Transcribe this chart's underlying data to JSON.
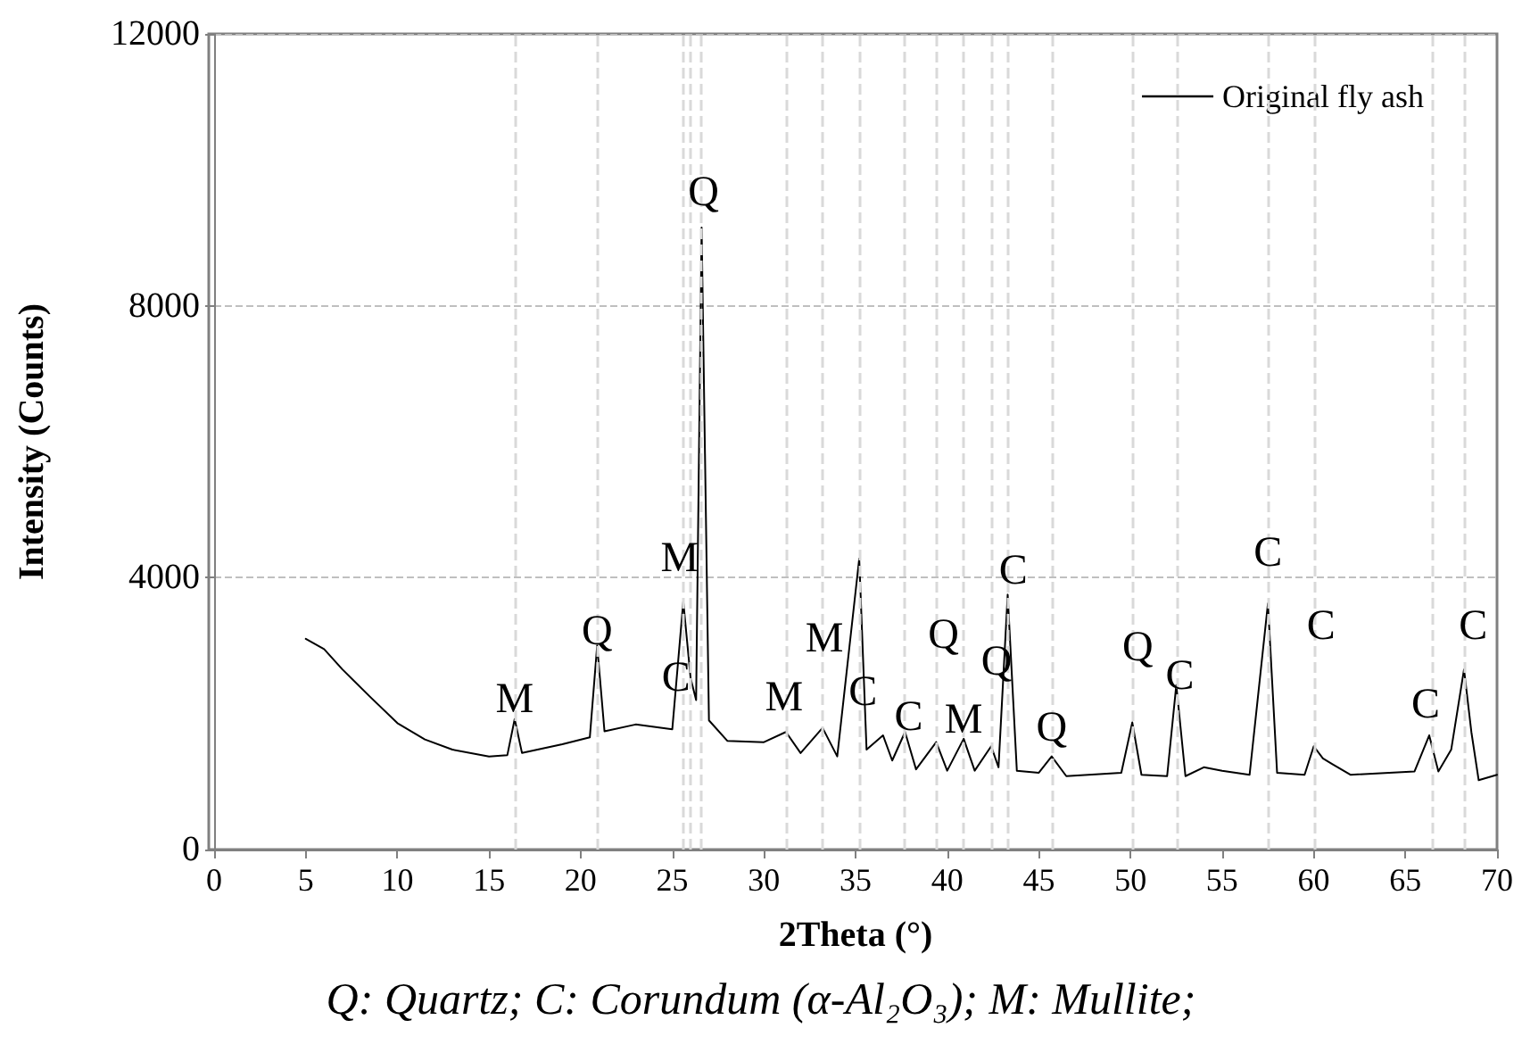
{
  "chart_data": {
    "type": "line",
    "xlabel": "2Theta (°)",
    "ylabel": "Intensity (Counts)",
    "xlim": [
      0,
      70
    ],
    "xticks": [
      0,
      5,
      10,
      15,
      20,
      25,
      30,
      35,
      40,
      45,
      50,
      55,
      60,
      65,
      70
    ],
    "ylim": [
      0,
      12000
    ],
    "yticks": [
      0,
      4000,
      8000,
      12000
    ],
    "grid": "y",
    "legend": "top right",
    "marker": "none",
    "line_style": "solid",
    "x": [
      5,
      6,
      7,
      8.5,
      10,
      11.5,
      13,
      15,
      16,
      16.4,
      16.8,
      19,
      20.5,
      20.9,
      21.3,
      23,
      25,
      25.6,
      26,
      26.3,
      26.6,
      27,
      28,
      30,
      31.2,
      32,
      33.2,
      34,
      35.2,
      35.6,
      36.5,
      37,
      37.7,
      38.3,
      39.4,
      40,
      40.9,
      41.5,
      42.4,
      42.8,
      43.3,
      43.8,
      45,
      45.7,
      46.5,
      49.5,
      50.1,
      50.6,
      52,
      52.5,
      53,
      54,
      55,
      56.5,
      57.5,
      58,
      59.5,
      60,
      60.5,
      61,
      62,
      65.5,
      66.3,
      66.8,
      67.5,
      68.2,
      68.6,
      69,
      70
    ],
    "series": [
      {
        "name": "Original fly ash",
        "color": "#000000",
        "values": [
          3100,
          2950,
          2650,
          2250,
          1860,
          1620,
          1470,
          1370,
          1390,
          1920,
          1420,
          1550,
          1650,
          3000,
          1740,
          1840,
          1770,
          3650,
          2520,
          2200,
          9150,
          1900,
          1600,
          1580,
          1730,
          1420,
          1790,
          1370,
          4280,
          1470,
          1680,
          1310,
          1730,
          1180,
          1580,
          1160,
          1630,
          1160,
          1520,
          1210,
          3750,
          1160,
          1130,
          1370,
          1080,
          1130,
          1870,
          1100,
          1080,
          2420,
          1080,
          1210,
          1160,
          1100,
          3620,
          1130,
          1100,
          1520,
          1340,
          1260,
          1100,
          1150,
          1680,
          1150,
          1470,
          2650,
          1730,
          1020,
          1100
        ]
      }
    ],
    "ref_lines": [
      {
        "axis": "x",
        "value": 16.4
      },
      {
        "axis": "x",
        "value": 20.9
      },
      {
        "axis": "x",
        "value": 25.6
      },
      {
        "axis": "x",
        "value": 26.0
      },
      {
        "axis": "x",
        "value": 26.6
      },
      {
        "axis": "x",
        "value": 31.2
      },
      {
        "axis": "x",
        "value": 33.2
      },
      {
        "axis": "x",
        "value": 35.2
      },
      {
        "axis": "x",
        "value": 37.7
      },
      {
        "axis": "x",
        "value": 39.4
      },
      {
        "axis": "x",
        "value": 40.9
      },
      {
        "axis": "x",
        "value": 42.4
      },
      {
        "axis": "x",
        "value": 43.3
      },
      {
        "axis": "x",
        "value": 45.7
      },
      {
        "axis": "x",
        "value": 50.1
      },
      {
        "axis": "x",
        "value": 52.5
      },
      {
        "axis": "x",
        "value": 57.5
      },
      {
        "axis": "x",
        "value": 60.0
      },
      {
        "axis": "x",
        "value": 66.5
      },
      {
        "axis": "x",
        "value": 68.2
      }
    ],
    "annotations": [
      {
        "text": "M",
        "x": 16.4,
        "y": 2200
      },
      {
        "text": "Q",
        "x": 20.9,
        "y": 3200
      },
      {
        "text": "M",
        "x": 25.4,
        "y": 4280
      },
      {
        "text": "C",
        "x": 25.2,
        "y": 2520
      },
      {
        "text": "Q",
        "x": 26.7,
        "y": 9660
      },
      {
        "text": "M",
        "x": 31.1,
        "y": 2230
      },
      {
        "text": "M",
        "x": 33.3,
        "y": 3100
      },
      {
        "text": "C",
        "x": 35.4,
        "y": 2310
      },
      {
        "text": "C",
        "x": 37.9,
        "y": 1940
      },
      {
        "text": "Q",
        "x": 39.8,
        "y": 3150
      },
      {
        "text": "M",
        "x": 40.9,
        "y": 1900
      },
      {
        "text": "Q",
        "x": 42.7,
        "y": 2760
      },
      {
        "text": "C",
        "x": 43.6,
        "y": 4100
      },
      {
        "text": "Q",
        "x": 45.7,
        "y": 1790
      },
      {
        "text": "Q",
        "x": 50.4,
        "y": 2970
      },
      {
        "text": "C",
        "x": 52.7,
        "y": 2550
      },
      {
        "text": "C",
        "x": 57.5,
        "y": 4360
      },
      {
        "text": "C",
        "x": 60.4,
        "y": 3280
      },
      {
        "text": "C",
        "x": 66.1,
        "y": 2130
      },
      {
        "text": "C",
        "x": 68.7,
        "y": 3280
      },
      "Q: Quartz; C: Corundum (α-Al₂O₃); M: Mullite;"
    ]
  }
}
